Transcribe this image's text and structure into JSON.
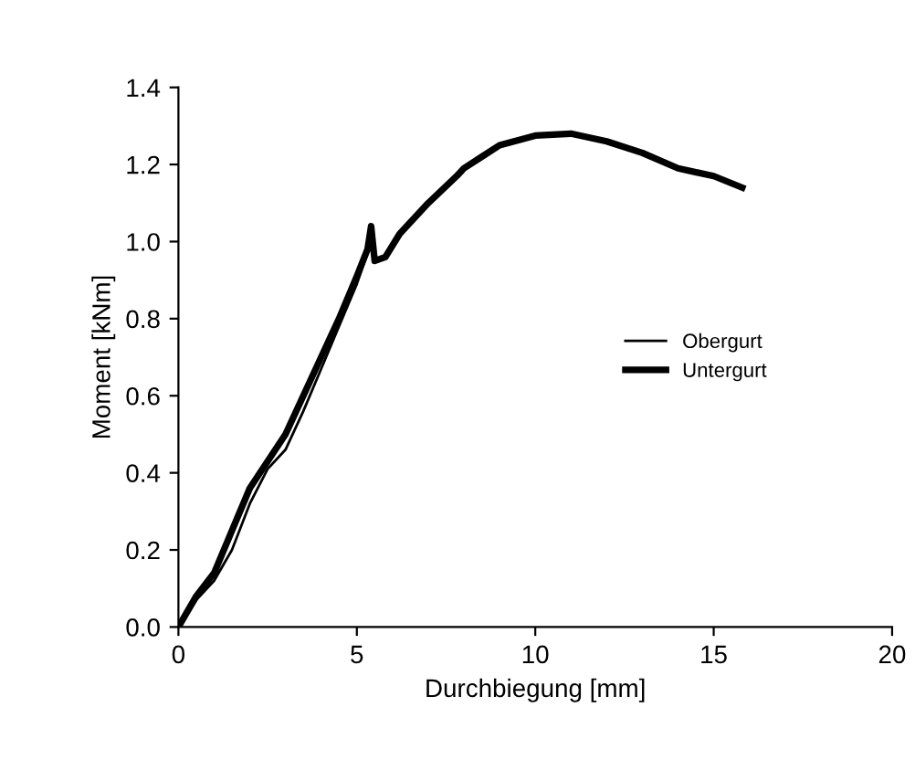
{
  "chart_data": {
    "type": "line",
    "xlabel": "Durchbiegung [mm]",
    "ylabel": "Moment [kNm]",
    "xlim": [
      0,
      20
    ],
    "xticks": [
      0,
      5,
      10,
      15,
      20
    ],
    "ylim": [
      0,
      1.4
    ],
    "yticks": [
      {
        "value": 0,
        "label": "0.0"
      },
      0.2,
      0.4,
      0.6,
      0.8,
      {
        "value": 1,
        "label": "1.0"
      },
      1.2,
      1.4
    ],
    "grid": false,
    "legend": "right",
    "series": [
      {
        "name": "Obergurt",
        "color": "#000000",
        "x": [
          0,
          0.5,
          1,
          1.5,
          2,
          2.5,
          3,
          3.5,
          4,
          4.5,
          5,
          5.3,
          5.4,
          5.5,
          5.8,
          6.2,
          7,
          7.8,
          8,
          8.5,
          9,
          10,
          11,
          12,
          13,
          14,
          15,
          15.8
        ],
        "values": [
          0,
          0.07,
          0.12,
          0.2,
          0.32,
          0.41,
          0.46,
          0.56,
          0.67,
          0.78,
          0.89,
          0.97,
          1.04,
          0.95,
          0.96,
          1.02,
          1.1,
          1.17,
          1.19,
          1.22,
          1.25,
          1.275,
          1.28,
          1.26,
          1.23,
          1.19,
          1.17,
          1.14
        ]
      },
      {
        "name": "Untergurt",
        "color": "#000000",
        "x": [
          0,
          0.5,
          1,
          1.5,
          2,
          2.5,
          3,
          3.5,
          4,
          4.5,
          5,
          5.3,
          5.4,
          5.5,
          5.8,
          6.2,
          7,
          7.8,
          8,
          8.5,
          9,
          10,
          11,
          12,
          13,
          14,
          15,
          15.8
        ],
        "values": [
          0,
          0.08,
          0.14,
          0.25,
          0.36,
          0.43,
          0.5,
          0.6,
          0.7,
          0.8,
          0.91,
          0.98,
          1.04,
          0.95,
          0.96,
          1.02,
          1.1,
          1.17,
          1.19,
          1.22,
          1.25,
          1.275,
          1.28,
          1.26,
          1.23,
          1.19,
          1.17,
          1.14
        ]
      }
    ]
  }
}
